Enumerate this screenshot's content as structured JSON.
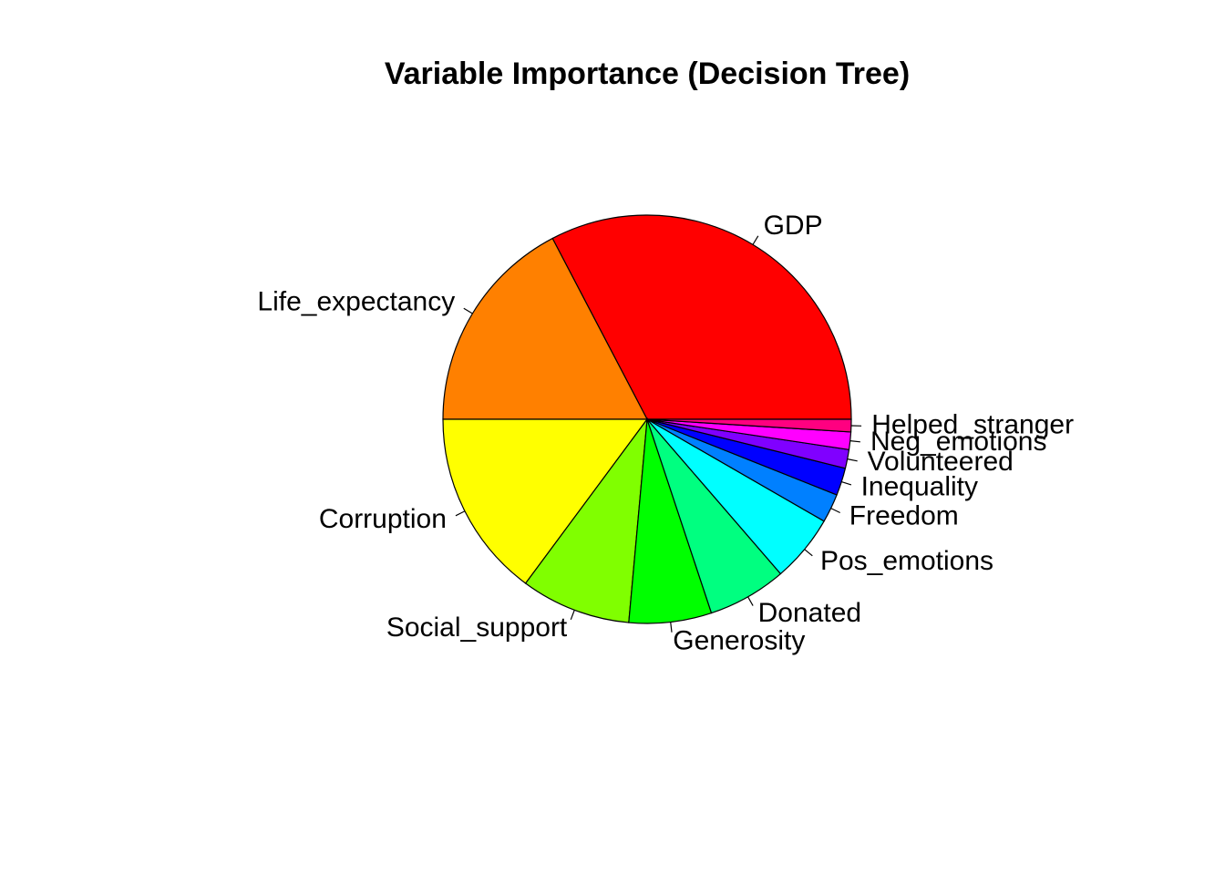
{
  "chart_data": {
    "type": "pie",
    "title": "Variable Importance (Decision Tree)",
    "start_angle_deg": 0,
    "direction": "counterclockwise",
    "slices": [
      {
        "label": "GDP",
        "value": 33.0,
        "color": "#FF0000"
      },
      {
        "label": "Life_expectancy",
        "value": 17.5,
        "color": "#FF8000"
      },
      {
        "label": "Corruption",
        "value": 15.0,
        "color": "#FFFF00"
      },
      {
        "label": "Social_support",
        "value": 8.8,
        "color": "#80FF00"
      },
      {
        "label": "Generosity",
        "value": 6.6,
        "color": "#00FF00"
      },
      {
        "label": "Donated",
        "value": 6.3,
        "color": "#00FF80"
      },
      {
        "label": "Pos_emotions",
        "value": 5.4,
        "color": "#00FFFF"
      },
      {
        "label": "Freedom",
        "value": 2.3,
        "color": "#0080FF"
      },
      {
        "label": "Inequality",
        "value": 2.2,
        "color": "#0000FF"
      },
      {
        "label": "Volunteered",
        "value": 1.5,
        "color": "#8000FF"
      },
      {
        "label": "Neg_emotions",
        "value": 1.4,
        "color": "#FF00FF"
      },
      {
        "label": "Helped_stranger",
        "value": 1.0,
        "color": "#FF0080"
      }
    ]
  }
}
